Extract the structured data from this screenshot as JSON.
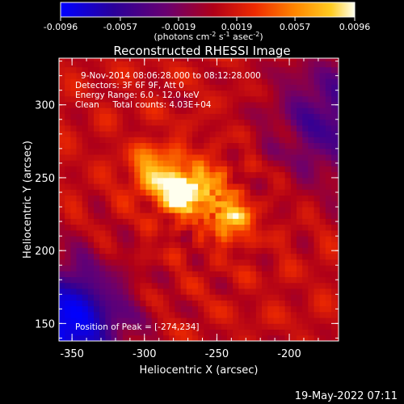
{
  "chart_data": {
    "type": "heatmap",
    "title": "Reconstructed RHESSI Image",
    "xlabel": "Heliocentric X (arcsec)",
    "ylabel": "Heliocentric Y (arcsec)",
    "xlim": [
      -359,
      -166
    ],
    "ylim": [
      138,
      332
    ],
    "xticks": [
      "-350",
      "-300",
      "-250",
      "-200"
    ],
    "yticks": [
      "150",
      "200",
      "250",
      "300"
    ],
    "colorbar": {
      "ticks": [
        "-0.0096",
        "-0.0057",
        "-0.0019",
        "0.0019",
        "0.0057",
        "0.0096"
      ],
      "range": [
        -0.0096,
        0.0096
      ],
      "units_main": "(photons cm",
      "units_sup1": "-2",
      "units_mid1": " s",
      "units_sup2": "-1",
      "units_mid2": " asec",
      "units_sup3": "-2",
      "units_end": ")"
    },
    "sources": [
      {
        "x": -276,
        "y": 238,
        "peak": 0.0096
      },
      {
        "x": -240,
        "y": 222,
        "peak": 0.0088
      },
      {
        "x": -292,
        "y": 254,
        "peak": 0.0075
      },
      {
        "x": -260,
        "y": 244,
        "peak": 0.0064
      }
    ],
    "annotations": {
      "time": "9-Nov-2014 08:06:28.000 to 08:12:28.000",
      "detectors": "Detectors: 3F 6F 9F, Att 0",
      "energy": "Energy Range: 6.0 - 12.0 keV",
      "clean": "Clean     Total counts: 4.03E+04",
      "peak_position": "Position of Peak = [-274,234]"
    },
    "colors": {
      "background": "#000000",
      "text": "#ffffff",
      "colormap": [
        "#0000ff",
        "#33007f",
        "#770066",
        "#cc1100",
        "#ff6600",
        "#ffcc33",
        "#ffffff"
      ]
    }
  },
  "footer": {
    "date": "19-May-2022 07:11"
  }
}
